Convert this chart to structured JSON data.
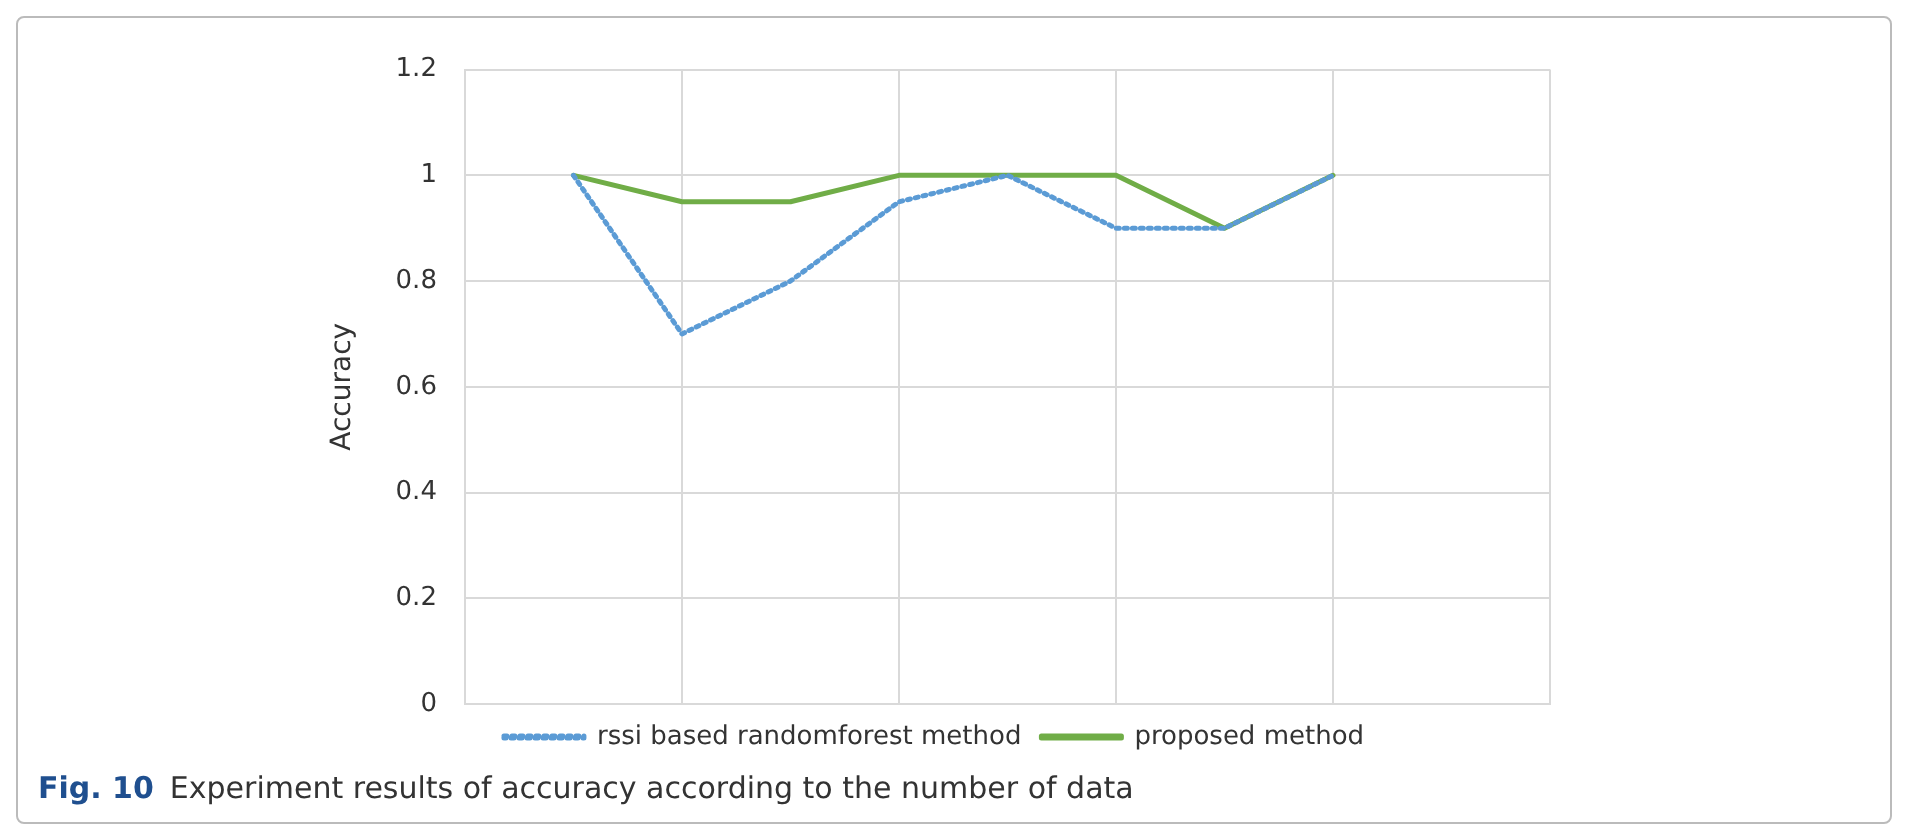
{
  "chart_data": {
    "type": "line",
    "title": "Fig. 10",
    "subtitle": "Experiment results of accuracy according to the number of data",
    "ylabel": "Accuracy",
    "categories": [
      null,
      null,
      null,
      null,
      null,
      null,
      null,
      null
    ],
    "ylim": [
      0,
      1.2
    ],
    "yticks": [
      0,
      0.2,
      0.4,
      0.6,
      0.8,
      1,
      1.2
    ],
    "grid": true,
    "legend": "bottom",
    "tick_labels": "y",
    "marker": "none",
    "series": [
      {
        "name": "proposed method",
        "color": "#70ad47",
        "line_style": "solid",
        "values": [
          1,
          0.95,
          0.95,
          1,
          1,
          1,
          0.9,
          1
        ]
      },
      {
        "name": "rssi based randomforest method",
        "color": "#5b9bd5",
        "line_style": "dotted",
        "values": [
          1,
          0.7,
          0.8,
          0.95,
          1,
          0.9,
          0.9,
          1
        ]
      }
    ]
  }
}
